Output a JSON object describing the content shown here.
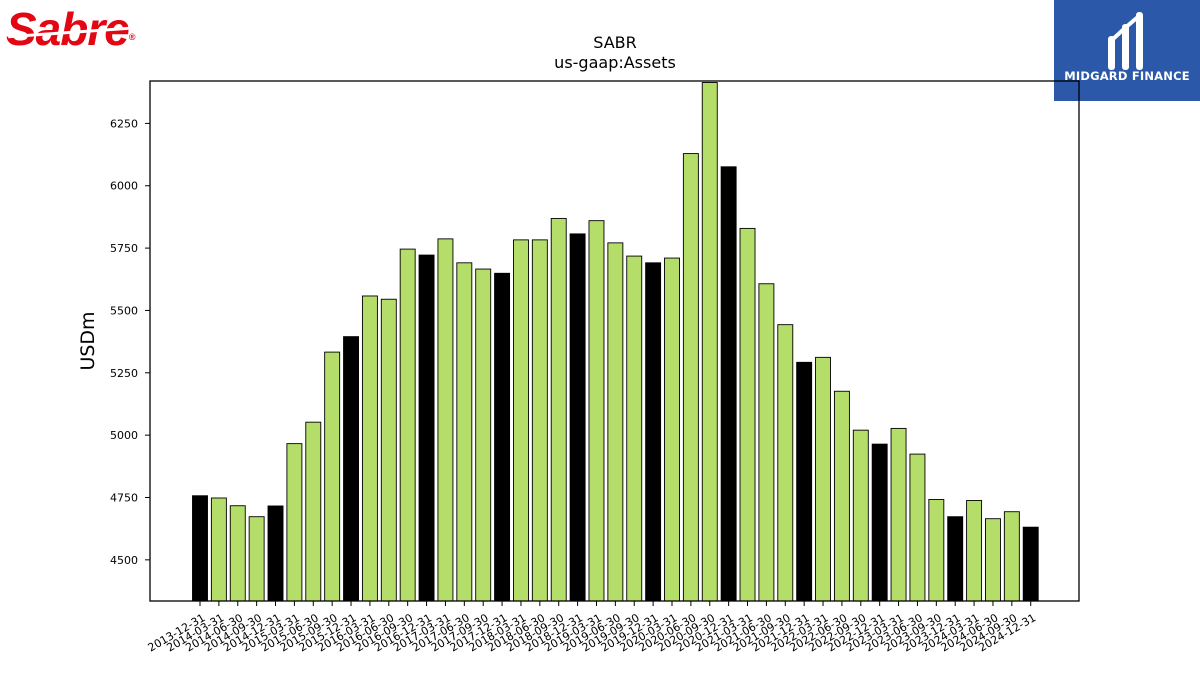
{
  "logos": {
    "brand_text": "Sabre",
    "brand_reg": "®",
    "brand_color": "#e30613",
    "partner_name": "MIDGARD FINANCE",
    "partner_color": "#2b58a8"
  },
  "chart_data": {
    "type": "bar",
    "title": "SABR",
    "subtitle": "us-gaap:Assets",
    "xlabel": "",
    "ylabel": "USDm",
    "ylim": [
      4335,
      6420
    ],
    "yticks": [
      4500,
      4750,
      5000,
      5250,
      5500,
      5750,
      6000,
      6250
    ],
    "grid": false,
    "colors": {
      "quarter": "#b5dd6a",
      "year_end": "#000000"
    },
    "categories": [
      "2013-12-31",
      "2014-03-31",
      "2014-06-30",
      "2014-09-30",
      "2014-12-31",
      "2015-03-31",
      "2015-06-30",
      "2015-09-30",
      "2015-12-31",
      "2016-03-31",
      "2016-06-30",
      "2016-09-30",
      "2016-12-31",
      "2017-03-31",
      "2017-06-30",
      "2017-09-30",
      "2017-12-31",
      "2018-03-31",
      "2018-06-30",
      "2018-09-30",
      "2018-12-31",
      "2019-03-31",
      "2019-06-30",
      "2019-09-30",
      "2019-12-31",
      "2020-03-31",
      "2020-06-30",
      "2020-09-30",
      "2020-12-31",
      "2021-03-31",
      "2021-06-30",
      "2021-09-30",
      "2021-12-31",
      "2022-03-31",
      "2022-06-30",
      "2022-09-30",
      "2022-12-31",
      "2023-03-31",
      "2023-06-30",
      "2023-09-30",
      "2023-12-31",
      "2024-03-31",
      "2024-06-30",
      "2024-09-30",
      "2024-12-31"
    ],
    "values": [
      4757,
      4748,
      4717,
      4673,
      4716,
      4966,
      5052,
      5333,
      5395,
      5558,
      5545,
      5746,
      5722,
      5787,
      5691,
      5666,
      5649,
      5783,
      5783,
      5869,
      5807,
      5860,
      5771,
      5718,
      5691,
      5710,
      6129,
      6414,
      6076,
      5829,
      5607,
      5443,
      5292,
      5312,
      5176,
      5020,
      4964,
      5027,
      4924,
      4742,
      4673,
      4738,
      4665,
      4693,
      4631
    ]
  }
}
